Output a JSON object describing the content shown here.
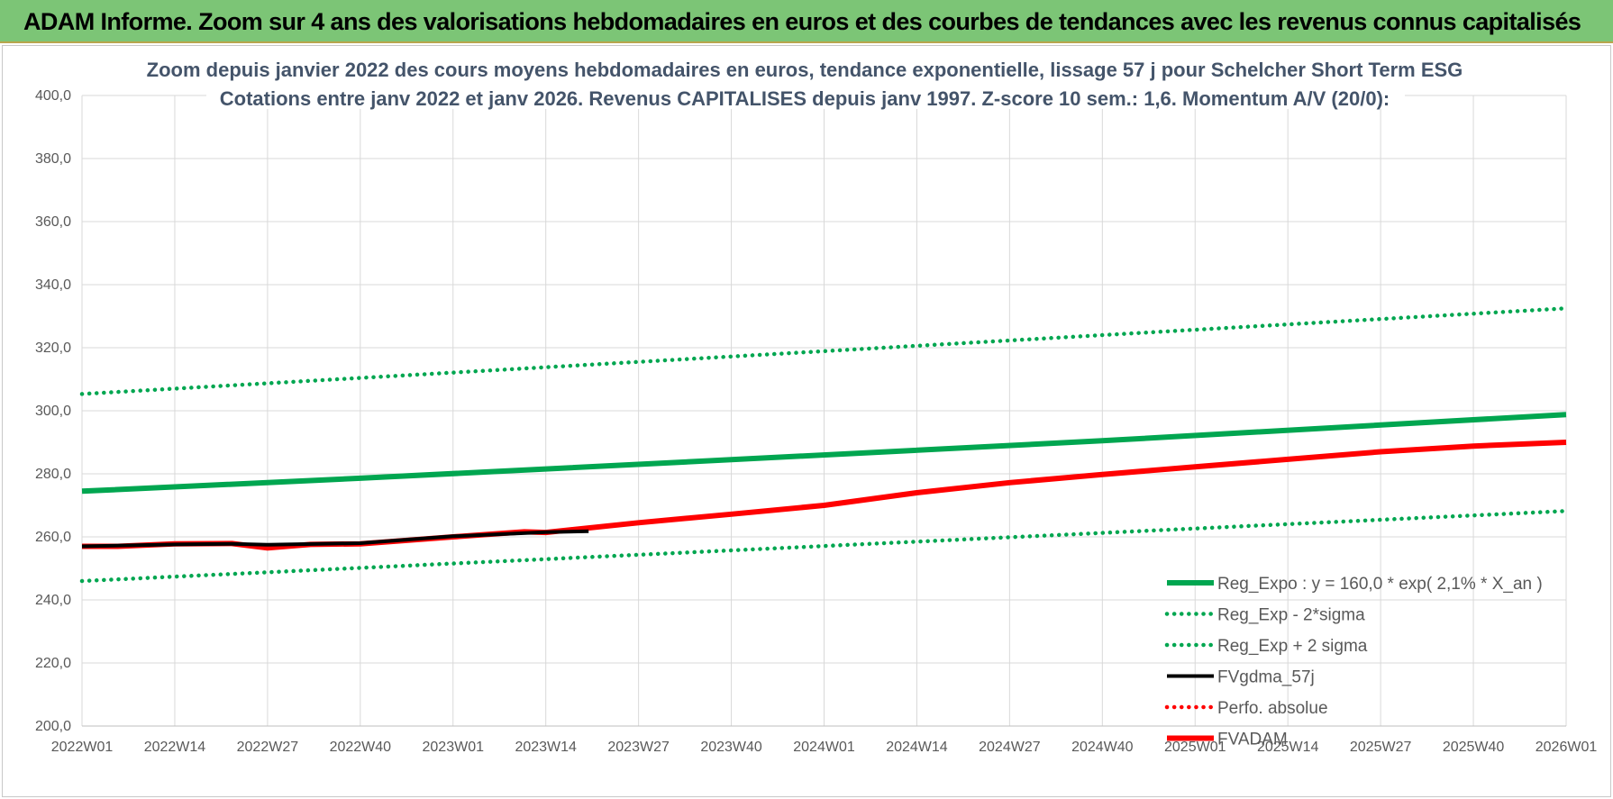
{
  "banner": {
    "title": "ADAM Informe. Zoom sur 4 ans des valorisations hebdomadaires en euros et des courbes de tendances avec les revenus connus capitalisés"
  },
  "colors": {
    "banner_bg": "#7cc576",
    "green": "#00a650",
    "red": "#ff0000",
    "black": "#000000",
    "grid": "#d9d9d9",
    "title_text": "#44546a"
  },
  "chart_data": {
    "type": "line",
    "title": [
      "Zoom depuis janvier 2022 des cours moyens hebdomadaires en euros, tendance exponentielle, lissage 57 j pour Schelcher Short Term ESG",
      "Cotations entre janv 2022 et janv 2026. Revenus CAPITALISES depuis janv 1997. Z-score 10 sem.: 1,6. Momentum A/V (20/0):"
    ],
    "xlabel": "",
    "ylabel": "",
    "ylim": [
      200,
      400
    ],
    "y_ticks": [
      "200,0",
      "220,0",
      "240,0",
      "260,0",
      "280,0",
      "300,0",
      "320,0",
      "340,0",
      "360,0",
      "380,0",
      "400,0"
    ],
    "x_ticks": [
      "2022W01",
      "2022W14",
      "2022W27",
      "2022W40",
      "2023W01",
      "2023W14",
      "2023W27",
      "2023W40",
      "2024W01",
      "2024W14",
      "2024W27",
      "2024W40",
      "2025W01",
      "2025W14",
      "2025W27",
      "2025W40",
      "2026W01"
    ],
    "grid": true,
    "legend_position": "bottom-right",
    "series": [
      {
        "name": "Reg_Expo : y = 160,0 * exp( 2,1% *  X_an )",
        "style": "solid-thick",
        "color": "#00a650",
        "x": [
          "2022W01",
          "2022W40",
          "2023W40",
          "2024W40",
          "2026W01"
        ],
        "values": [
          274.5,
          278.6,
          284.5,
          290.5,
          298.8
        ]
      },
      {
        "name": "Reg_Exp - 2*sigma",
        "style": "dotted",
        "color": "#00a650",
        "x": [
          "2022W01",
          "2026W01"
        ],
        "values": [
          246.0,
          268.2
        ]
      },
      {
        "name": "Reg_Exp + 2 sigma",
        "style": "dotted",
        "color": "#00a650",
        "x": [
          "2022W01",
          "2026W01"
        ],
        "values": [
          305.3,
          332.5
        ]
      },
      {
        "name": "FVgdma_57j",
        "style": "solid",
        "color": "#000000",
        "x": [
          "2022W01",
          "2022W14",
          "2022W22",
          "2022W27",
          "2022W40",
          "2023W01",
          "2023W14",
          "2023W20"
        ],
        "values": [
          257.0,
          257.6,
          257.8,
          257.5,
          258.0,
          260.2,
          261.5,
          261.8
        ]
      },
      {
        "name": "Perfo. absolue",
        "style": "dotted",
        "color": "#ff0000",
        "x": [],
        "values": []
      },
      {
        "name": "FVADAM",
        "style": "solid-thick",
        "color": "#ff0000",
        "x": [
          "2022W01",
          "2022W06",
          "2022W14",
          "2022W22",
          "2022W27",
          "2022W33",
          "2022W40",
          "2023W01",
          "2023W11",
          "2023W14",
          "2023W27",
          "2023W40",
          "2024W01",
          "2024W14",
          "2024W27",
          "2024W40",
          "2025W01",
          "2025W14",
          "2025W27",
          "2025W40",
          "2026W01"
        ],
        "values": [
          257.0,
          257.0,
          257.8,
          257.9,
          256.5,
          257.6,
          257.8,
          260.0,
          261.6,
          261.4,
          264.5,
          267.2,
          270.0,
          274.0,
          277.2,
          279.8,
          282.2,
          284.6,
          287.0,
          288.8,
          290.0
        ]
      }
    ]
  }
}
